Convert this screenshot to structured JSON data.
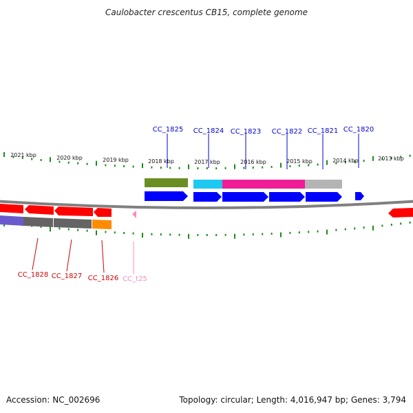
{
  "title": "Caulobacter crescentus CB15, complete genome",
  "footer": {
    "accession": "Accession: NC_002696",
    "summary": "Topology: circular; Length: 4,016,947 bp; Genes: 3,794"
  },
  "colors": {
    "forward_gene": "#0000ff",
    "reverse_gene": "#ff0000",
    "tick": "#1a8a1a",
    "backbone": "#808080",
    "trna": "#ff88c0",
    "cog_olive": "#6b8e23",
    "cog_cyan": "#1ec8f0",
    "cog_magenta": "#f01e96",
    "cog_gray": "#b4b4b4",
    "cog_darkgray": "#646464",
    "cog_orange": "#ff8c00",
    "cog_purple": "#6a5acd"
  },
  "kbp_labels": [
    "2021 kbp",
    "2020 kbp",
    "2019 kbp",
    "2018 kbp",
    "2017 kbp",
    "2016 kbp",
    "2015 kbp",
    "2014 kbp",
    "2013 kbp"
  ],
  "forward_gene_labels": [
    "CC_1825",
    "CC_1824",
    "CC_1823",
    "CC_1822",
    "CC_1821",
    "CC_1820"
  ],
  "reverse_gene_labels": [
    "CC_1828",
    "CC_1827",
    "CC_1826"
  ],
  "trna_labels": [
    "CC_t25"
  ]
}
